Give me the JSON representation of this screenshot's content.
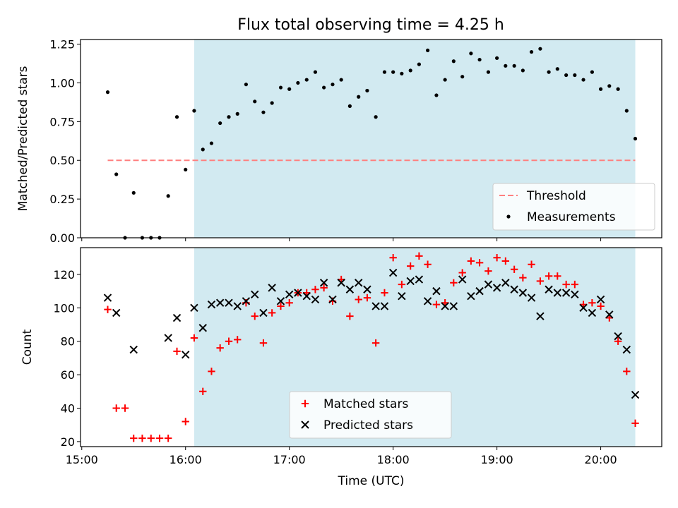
{
  "title": "Flux total observing time = 4.25 h",
  "colors": {
    "span": "#add8e6",
    "threshold": "#ff7f7f",
    "measurement": "#000000",
    "matched": "#ff0000",
    "predicted": "#000000"
  },
  "chart_data": [
    {
      "type": "scatter",
      "ylabel": "Matched/Predicted stars",
      "xlim": [
        14.988,
        20.588
      ],
      "ylim": [
        0,
        1.28
      ],
      "yticks": [
        0,
        0.25,
        0.5,
        0.75,
        1.0,
        1.25
      ],
      "ytick_labels": [
        "0.00",
        "0.25",
        "0.50",
        "0.75",
        "1.00",
        "1.25"
      ],
      "xticks": [
        15,
        16,
        17,
        18,
        19,
        20
      ],
      "shaded_x_range": [
        16.083,
        20.333
      ],
      "threshold": {
        "name": "Threshold",
        "y": 0.5,
        "x_range": [
          15.25,
          20.333
        ],
        "style": "dashed"
      },
      "legend": {
        "placement": "lower right",
        "entries": [
          "Threshold",
          "Measurements"
        ]
      },
      "series": [
        {
          "name": "Measurements",
          "marker": "dot",
          "x": [
            15.25,
            15.333,
            15.417,
            15.5,
            15.583,
            15.667,
            15.75,
            15.833,
            15.917,
            16.0,
            16.083,
            16.167,
            16.25,
            16.333,
            16.417,
            16.5,
            16.583,
            16.667,
            16.75,
            16.833,
            16.917,
            17.0,
            17.083,
            17.167,
            17.25,
            17.333,
            17.417,
            17.5,
            17.583,
            17.667,
            17.75,
            17.833,
            17.917,
            18.0,
            18.083,
            18.167,
            18.25,
            18.333,
            18.417,
            18.5,
            18.583,
            18.667,
            18.75,
            18.833,
            18.917,
            19.0,
            19.083,
            19.167,
            19.25,
            19.333,
            19.417,
            19.5,
            19.583,
            19.667,
            19.75,
            19.833,
            19.917,
            20.0,
            20.083,
            20.167,
            20.25,
            20.333
          ],
          "y": [
            0.94,
            0.41,
            0.0,
            0.29,
            0.0,
            0.0,
            0.0,
            0.27,
            0.78,
            0.44,
            0.82,
            0.57,
            0.61,
            0.74,
            0.78,
            0.8,
            0.99,
            0.88,
            0.81,
            0.87,
            0.97,
            0.96,
            1.0,
            1.02,
            1.07,
            0.97,
            0.99,
            1.02,
            0.85,
            0.91,
            0.95,
            0.78,
            1.07,
            1.07,
            1.06,
            1.08,
            1.12,
            1.21,
            0.92,
            1.02,
            1.14,
            1.04,
            1.19,
            1.15,
            1.07,
            1.16,
            1.11,
            1.11,
            1.08,
            1.2,
            1.22,
            1.07,
            1.09,
            1.05,
            1.05,
            1.02,
            1.07,
            0.96,
            0.98,
            0.96,
            0.82,
            0.64
          ]
        }
      ]
    },
    {
      "type": "scatter",
      "ylabel": "Count",
      "xlabel": "Time (UTC)",
      "xlim": [
        14.988,
        20.588
      ],
      "ylim": [
        17,
        136
      ],
      "yticks": [
        20,
        40,
        60,
        80,
        100,
        120
      ],
      "xticks": [
        15,
        16,
        17,
        18,
        19,
        20
      ],
      "xtick_labels": [
        "15:00",
        "16:00",
        "17:00",
        "18:00",
        "19:00",
        "20:00"
      ],
      "shaded_x_range": [
        16.083,
        20.333
      ],
      "legend": {
        "placement": "lower center",
        "entries": [
          "Matched stars",
          "Predicted stars"
        ]
      },
      "series": [
        {
          "name": "Matched stars",
          "marker": "plus",
          "x": [
            15.25,
            15.333,
            15.417,
            15.5,
            15.583,
            15.667,
            15.75,
            15.833,
            15.917,
            16.0,
            16.083,
            16.167,
            16.25,
            16.333,
            16.417,
            16.5,
            16.583,
            16.667,
            16.75,
            16.833,
            16.917,
            17.0,
            17.083,
            17.167,
            17.25,
            17.333,
            17.417,
            17.5,
            17.583,
            17.667,
            17.75,
            17.833,
            17.917,
            18.0,
            18.083,
            18.167,
            18.25,
            18.333,
            18.417,
            18.5,
            18.583,
            18.667,
            18.75,
            18.833,
            18.917,
            19.0,
            19.083,
            19.167,
            19.25,
            19.333,
            19.417,
            19.5,
            19.583,
            19.667,
            19.75,
            19.833,
            19.917,
            20.0,
            20.083,
            20.167,
            20.25,
            20.333
          ],
          "y": [
            99,
            40,
            40,
            22,
            22,
            22,
            22,
            22,
            74,
            32,
            82,
            50,
            62,
            76,
            80,
            81,
            103,
            95,
            79,
            97,
            101,
            103,
            109,
            109,
            111,
            112,
            104,
            117,
            95,
            105,
            106,
            79,
            109,
            130,
            114,
            125,
            131,
            126,
            102,
            103,
            115,
            121,
            128,
            127,
            122,
            130,
            128,
            123,
            118,
            126,
            116,
            119,
            119,
            114,
            114,
            102,
            103,
            101,
            94,
            80,
            62,
            31
          ]
        },
        {
          "name": "Predicted stars",
          "marker": "x",
          "x": [
            15.25,
            15.333,
            15.5,
            15.833,
            15.917,
            16.0,
            16.083,
            16.167,
            16.25,
            16.333,
            16.417,
            16.5,
            16.583,
            16.667,
            16.75,
            16.833,
            16.917,
            17.0,
            17.083,
            17.167,
            17.25,
            17.333,
            17.417,
            17.5,
            17.583,
            17.667,
            17.75,
            17.833,
            17.917,
            18.0,
            18.083,
            18.167,
            18.25,
            18.333,
            18.417,
            18.5,
            18.583,
            18.667,
            18.75,
            18.833,
            18.917,
            19.0,
            19.083,
            19.167,
            19.25,
            19.333,
            19.417,
            19.5,
            19.583,
            19.667,
            19.75,
            19.833,
            19.917,
            20.0,
            20.083,
            20.167,
            20.25,
            20.333
          ],
          "y": [
            106,
            97,
            75,
            82,
            94,
            72,
            100,
            88,
            102,
            103,
            103,
            101,
            104,
            108,
            97,
            112,
            104,
            108,
            109,
            107,
            105,
            115,
            105,
            115,
            111,
            115,
            111,
            101,
            101,
            121,
            107,
            116,
            117,
            104,
            110,
            101,
            101,
            117,
            107,
            110,
            114,
            112,
            115,
            111,
            109,
            106,
            95,
            111,
            109,
            109,
            108,
            100,
            97,
            105,
            96,
            83,
            75,
            48
          ]
        }
      ]
    }
  ]
}
